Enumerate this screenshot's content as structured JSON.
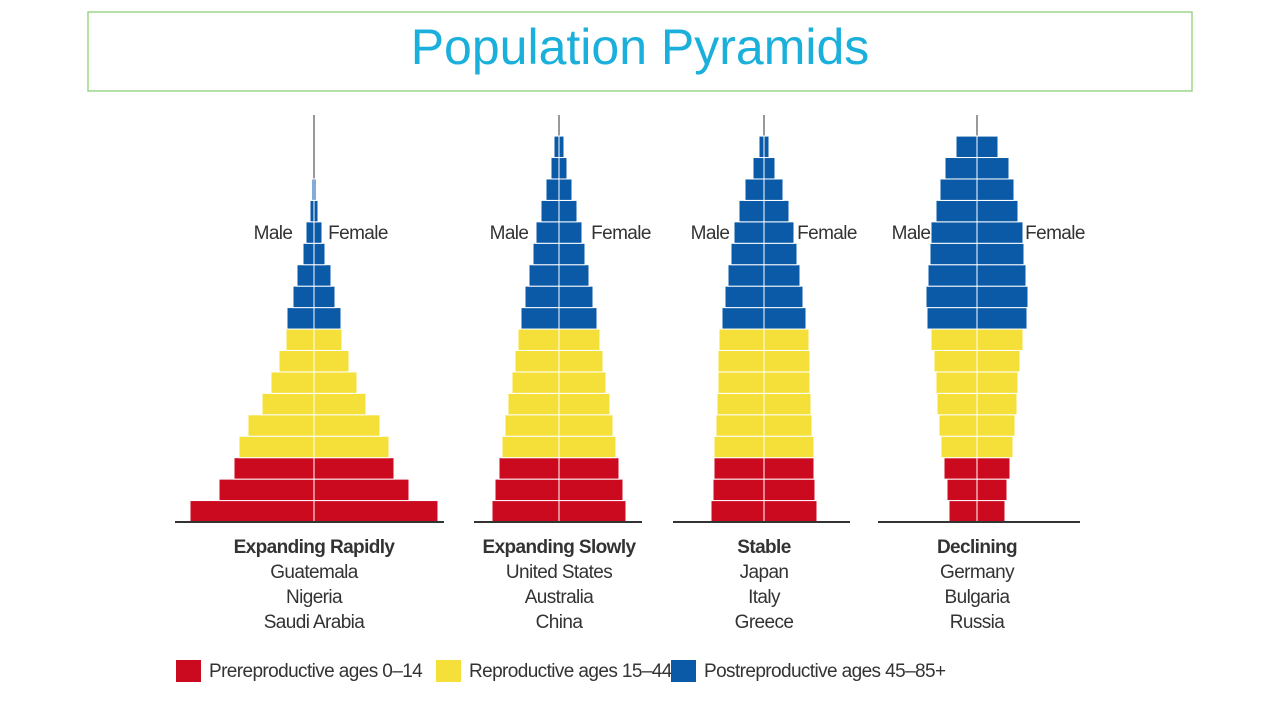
{
  "title": "Population Pyramids",
  "legend": [
    {
      "name": "Prereproductive ages 0–14",
      "color": "#cc0a1f"
    },
    {
      "name": "Reproductive ages 15–44",
      "color": "#f5e03a"
    },
    {
      "name": "Postreproductive ages 45–85+",
      "color": "#0b5aa8"
    }
  ],
  "chart_data": [
    {
      "type": "pyramid",
      "title": "Expanding Rapidly",
      "countries": [
        "Guatemala",
        "Nigeria",
        "Saudi Arabia"
      ],
      "male_label": "Male",
      "female_label": "Female",
      "male": [
        [
          124,
          95,
          80
        ],
        [
          75,
          66,
          52,
          43,
          35,
          28
        ],
        [
          27,
          21,
          17,
          11,
          8,
          4,
          2,
          0,
          0
        ]
      ],
      "female": [
        [
          124,
          95,
          80
        ],
        [
          75,
          66,
          52,
          43,
          35,
          28
        ],
        [
          27,
          21,
          17,
          11,
          8,
          4,
          2,
          0,
          0
        ]
      ]
    },
    {
      "type": "pyramid",
      "title": "Expanding Slowly",
      "countries": [
        "United States",
        "Australia",
        "China"
      ],
      "male_label": "Male",
      "female_label": "Female",
      "male": [
        [
          67,
          64,
          60
        ],
        [
          57,
          54,
          51,
          47,
          44,
          41
        ],
        [
          38,
          34,
          30,
          26,
          23,
          18,
          13,
          8,
          5
        ]
      ],
      "female": [
        [
          67,
          64,
          60
        ],
        [
          57,
          54,
          51,
          47,
          44,
          41
        ],
        [
          38,
          34,
          30,
          26,
          23,
          18,
          13,
          8,
          5
        ]
      ]
    },
    {
      "type": "pyramid",
      "title": "Stable",
      "countries": [
        "Japan",
        "Italy",
        "Greece"
      ],
      "male_label": "Male",
      "female_label": "Female",
      "male": [
        [
          53,
          51,
          50
        ],
        [
          50,
          48,
          47,
          46,
          46,
          45
        ],
        [
          42,
          39,
          36,
          33,
          30,
          25,
          19,
          11,
          5
        ]
      ],
      "female": [
        [
          53,
          51,
          50
        ],
        [
          50,
          48,
          47,
          46,
          46,
          45
        ],
        [
          42,
          39,
          36,
          33,
          30,
          25,
          19,
          11,
          5
        ]
      ]
    },
    {
      "type": "pyramid",
      "title": "Declining",
      "countries": [
        "Germany",
        "Bulgaria",
        "Russia"
      ],
      "male_label": "Male",
      "female_label": "Female",
      "male": [
        [
          28,
          30,
          33
        ],
        [
          36,
          38,
          40,
          41,
          43,
          46
        ],
        [
          50,
          51,
          49,
          47,
          46,
          41,
          37,
          32,
          21
        ]
      ],
      "female": [
        [
          28,
          30,
          33
        ],
        [
          36,
          38,
          40,
          41,
          43,
          46
        ],
        [
          50,
          51,
          49,
          47,
          46,
          41,
          37,
          32,
          21
        ]
      ]
    }
  ]
}
